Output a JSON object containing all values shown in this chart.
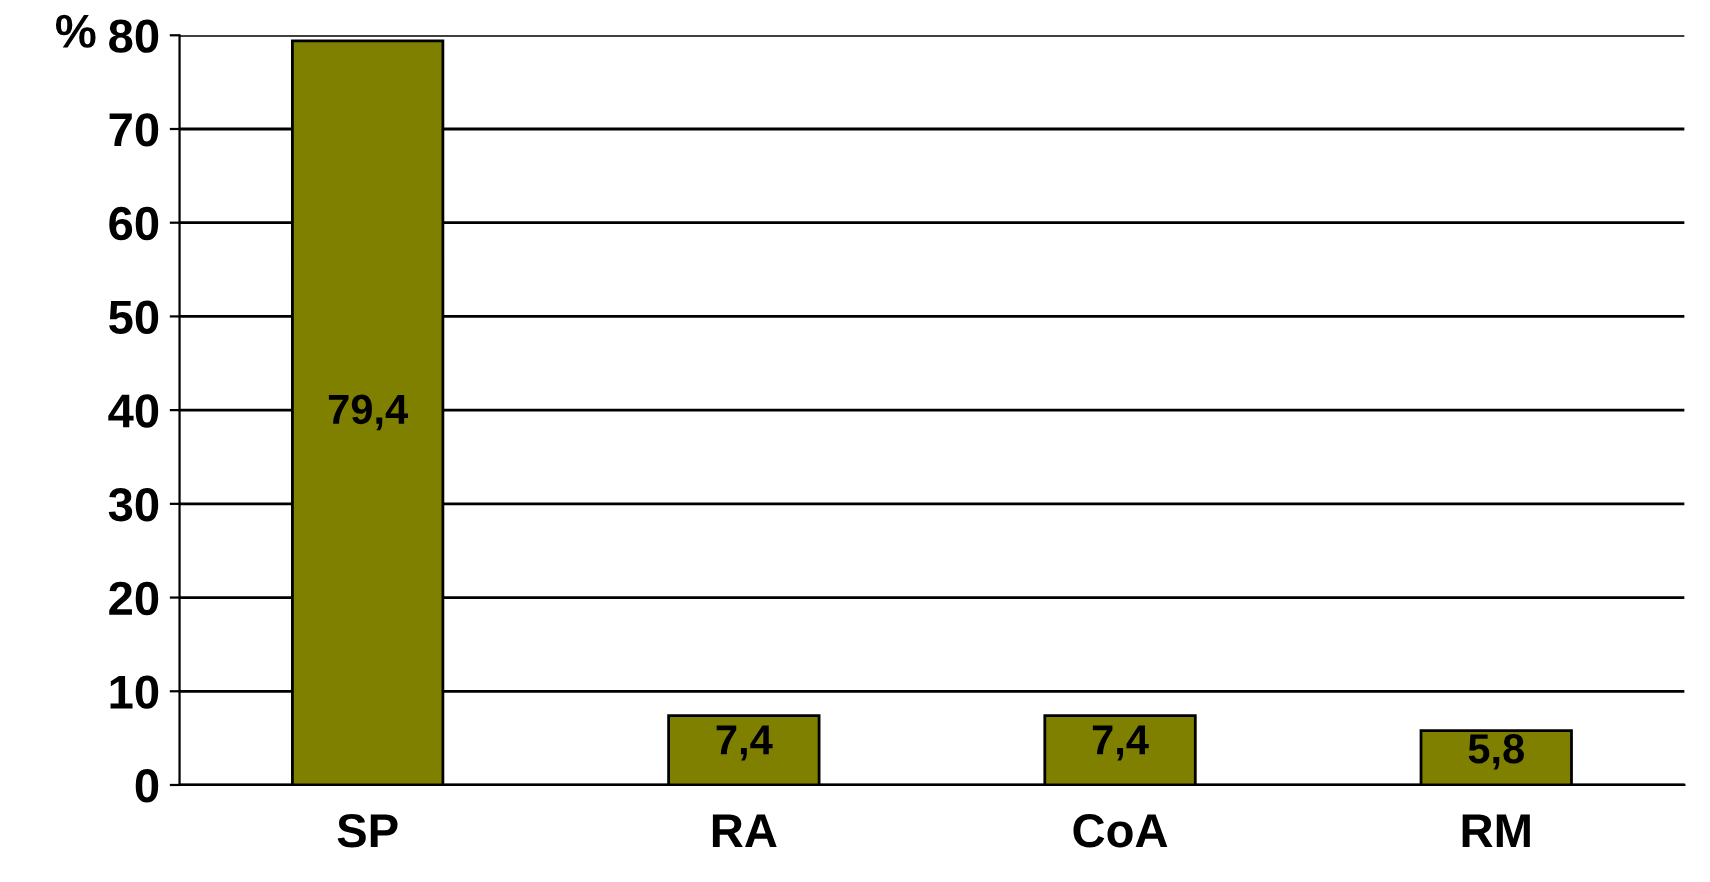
{
  "chart_data": {
    "type": "bar",
    "ylabel": "%",
    "categories": [
      "SP",
      "RA",
      "CoA",
      "RM"
    ],
    "values": [
      79.4,
      7.4,
      7.4,
      5.8
    ],
    "value_labels": [
      "79,4",
      "7,4",
      "7,4",
      "5,8"
    ],
    "color": "#808000",
    "ylim": [
      0,
      80
    ],
    "yticks": [
      0,
      10,
      20,
      30,
      40,
      50,
      60,
      70,
      80
    ],
    "grid": "y"
  }
}
